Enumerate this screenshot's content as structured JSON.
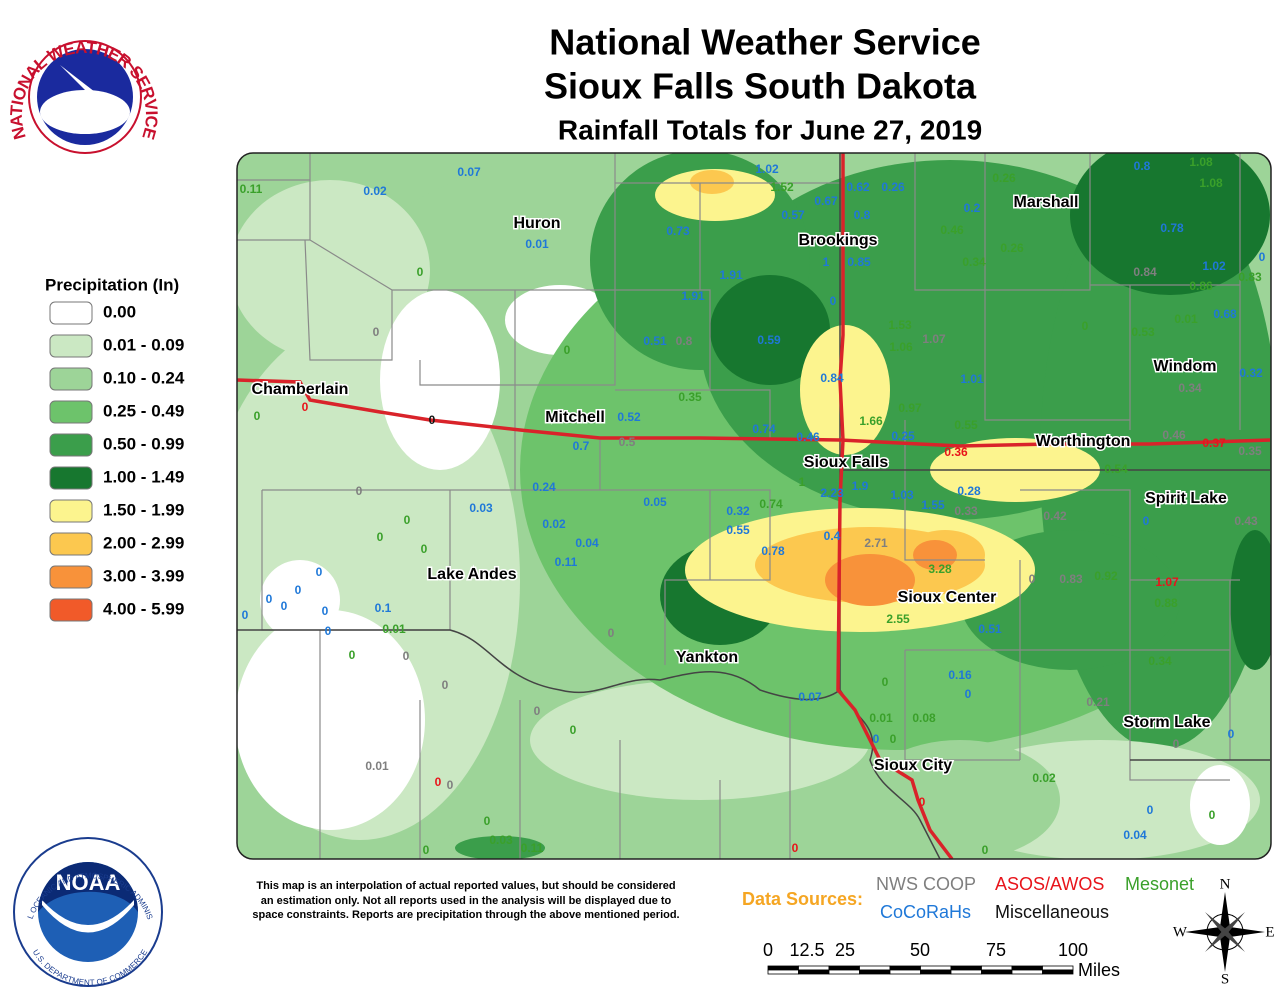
{
  "header": {
    "title": "National Weather Service",
    "subtitle": "Sioux Falls South Dakota",
    "map_title": "Rainfall Totals for June 27, 2019"
  },
  "legend": {
    "title": "Precipitation (In)",
    "items": [
      {
        "label": "0.00",
        "color": "#ffffff"
      },
      {
        "label": "0.01 - 0.09",
        "color": "#cbe8c3"
      },
      {
        "label": "0.10 - 0.24",
        "color": "#9dd498"
      },
      {
        "label": "0.25 - 0.49",
        "color": "#6dc36b"
      },
      {
        "label": "0.50 - 0.99",
        "color": "#3b9e4b"
      },
      {
        "label": "1.00 - 1.49",
        "color": "#17772f"
      },
      {
        "label": "1.50 - 1.99",
        "color": "#fcf48e"
      },
      {
        "label": "2.00 - 2.99",
        "color": "#fcc84f"
      },
      {
        "label": "3.00 - 3.99",
        "color": "#f8923a"
      },
      {
        "label": "4.00 - 5.99",
        "color": "#f15a29"
      }
    ]
  },
  "cities": [
    "Huron",
    "Brookings",
    "Marshall",
    "Chamberlain",
    "Mitchell",
    "Sioux Falls",
    "Worthington",
    "Windom",
    "Spirit Lake",
    "Lake Andes",
    "Sioux Center",
    "Yankton",
    "Storm Lake",
    "Sioux City"
  ],
  "reports": {
    "coop": {
      "name": "NWS COOP",
      "color": "#7f7f7f",
      "values": [
        "0",
        "0.8",
        "1.07",
        "0.84",
        "0.34",
        "0.5",
        "0",
        "0.33",
        "0.42",
        "0.43",
        "2.71",
        "0",
        "0.83",
        "0",
        "0",
        "0",
        "0",
        "0.21",
        "0",
        "0.01",
        "0",
        "0.35",
        "0.46"
      ]
    },
    "asos": {
      "name": "ASOS/AWOS",
      "color": "#e8141b",
      "values": [
        "0",
        "0.36",
        "0.37",
        "1.07",
        "0",
        "0",
        "0"
      ]
    },
    "mesonet": {
      "name": "Mesonet",
      "color": "#3aa02a",
      "values": [
        "0.11",
        "1.52",
        "0.26",
        "1.08",
        "1.08",
        "0.46",
        "0.26",
        "0.34",
        "0.86",
        "0.83",
        "0.01",
        "0.53",
        "0",
        "0",
        "0",
        "1.53",
        "1.06",
        "0.35",
        "1.66",
        "0.97",
        "0.55",
        "0.54",
        "0",
        "0.74",
        "1",
        "0",
        "0",
        "0",
        "3.28",
        "2.55",
        "0.88",
        "0.92",
        "0.01",
        "0",
        "0.34",
        "0",
        "0.01",
        "0.08",
        "0",
        "0",
        "0.02",
        "0",
        "0",
        "0.03",
        "0.11",
        "0",
        "0"
      ]
    },
    "cocorahs": {
      "name": "CoCoRaHs",
      "color": "#1f78d8",
      "values": [
        "0.07",
        "0.02",
        "0.01",
        "1.02",
        "0.62",
        "0.26",
        "0.67",
        "0.57",
        "0.8",
        "0.73",
        "0.2",
        "0.8",
        "0.78",
        "1.91",
        "1",
        "0.85",
        "1.91",
        "0",
        "0.51",
        "0.59",
        "0.84",
        "1.01",
        "1.02",
        "0",
        "0.68",
        "0.32",
        "0.52",
        "0.7",
        "0.74",
        "0.46",
        "0.25",
        "2.23",
        "1.9",
        "1.03",
        "1.55",
        "0.28",
        "0.24",
        "0.03",
        "0.05",
        "0.02",
        "0.32",
        "0.55",
        "0.04",
        "0.11",
        "0.78",
        "0.4",
        "0",
        "0",
        "0",
        "0",
        "0",
        "0",
        "0.1",
        "0",
        "0.51",
        "0",
        "0.07",
        "0.16",
        "0",
        "0",
        "0",
        "0",
        "0.04"
      ]
    },
    "misc": {
      "name": "Miscellaneous",
      "color": "#111111",
      "values": [
        "0"
      ]
    }
  },
  "data_sources": "Data Sources:",
  "disclaimer": [
    "This map is an interpolation of actual reported values, but should be considered",
    "an estimation only. Not all reports used in the analysis will be displayed due to",
    "space constraints. Reports are precipitation through the above mentioned period."
  ],
  "scale": {
    "ticks": [
      "0",
      "12.5",
      "25",
      "50",
      "75",
      "100"
    ],
    "unit": "Miles"
  },
  "compass": {
    "n": "N",
    "s": "S",
    "e": "E",
    "w": "W"
  },
  "logos": {
    "nws": "NATIONAL WEATHER SERVICE",
    "noaa": "NOAA",
    "noaa_top": "NATIONAL OCEANIC AND ATMOSPHERIC ADMINISTRATION",
    "noaa_bottom": "U.S. DEPARTMENT OF COMMERCE"
  }
}
